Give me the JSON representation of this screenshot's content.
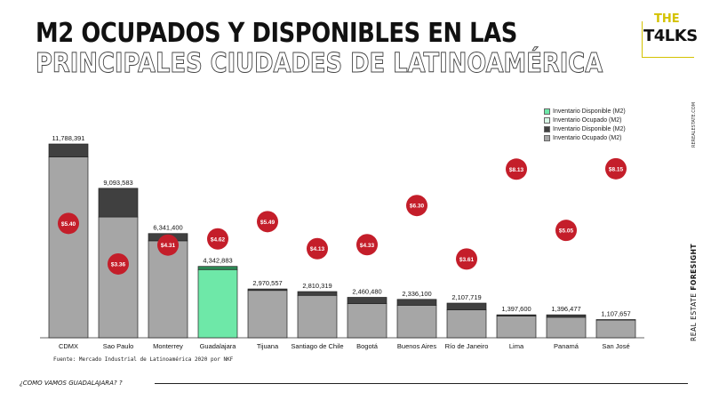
{
  "header": {
    "title_line1": "M2 OCUPADOS Y DISPONIBLES EN LAS",
    "title_line2": "PRINCIPALES CIUDADES DE LATINOAMÉRICA"
  },
  "logo": {
    "top": "THE",
    "bottom": "T4LKS"
  },
  "side_url": "REREALESTATE.COM",
  "side_brand": {
    "prefix": "REAL ESTATE ",
    "bold": "FORESIGHT"
  },
  "source": "Fuente: Mercado Industrial de Latinoamérica 2020 por NKF",
  "footer": "¿COMO VAMOS GUADALAJARA? ?",
  "colors": {
    "occupied": "#a6a6a6",
    "available": "#404040",
    "gdl_occupied": "#6ee8a8",
    "gdl_available": "#2c8a55",
    "price_circle": "#c41e2a"
  },
  "legend": [
    {
      "label": "Inventario Disponible (M2)",
      "color": "#6ee8a8"
    },
    {
      "label": "Inventario Ocupado (M2)",
      "color": "#d8f7e6"
    },
    {
      "label": "Inventario Disponible (M2)",
      "color": "#404040"
    },
    {
      "label": "Inventario Ocupado (M2)",
      "color": "#a6a6a6"
    }
  ],
  "chart_data": {
    "type": "bar",
    "stacked": true,
    "categories": [
      "CDMX",
      "Sao Paulo",
      "Monterrey",
      "Guadalajara",
      "Tijuana",
      "Santiago de Chile",
      "Bogotá",
      "Buenos Aires",
      "Río de Janeiro",
      "Lima",
      "Panamá",
      "San José"
    ],
    "totals": [
      11788391,
      9093583,
      6341400,
      4342883,
      2970557,
      2810319,
      2460480,
      2336100,
      2107719,
      1397600,
      1396477,
      1107657
    ],
    "total_labels": [
      "11,788,391",
      "9,093,583",
      "6,341,400",
      "4,342,883",
      "2,970,557",
      "2,810,319",
      "2,460,480",
      "2,336,100",
      "2,107,719",
      "1,397,600",
      "1,396,477",
      "1,107,657"
    ],
    "series": [
      {
        "name": "Inventario Ocupado (M2)",
        "values": [
          11000000,
          7350000,
          5900000,
          4150000,
          2880000,
          2580000,
          2080000,
          1980000,
          1700000,
          1320000,
          1250000,
          1080000
        ]
      },
      {
        "name": "Inventario Disponible (M2)",
        "values": [
          788391,
          1743583,
          441400,
          192883,
          90557,
          230319,
          380480,
          356100,
          407719,
          77600,
          146477,
          27657
        ]
      }
    ],
    "prices": [
      "$5.40",
      "$3.36",
      "$4.31",
      "$4.62",
      "$5.49",
      "$4.13",
      "$4.33",
      "$6.30",
      "$3.61",
      "$8.13",
      "$5.05",
      "$8.15"
    ],
    "price_values": [
      5.4,
      3.36,
      4.31,
      4.62,
      5.49,
      4.13,
      4.33,
      6.3,
      3.61,
      8.13,
      5.05,
      8.15
    ],
    "highlight_category": "Guadalajara",
    "ylim": [
      0,
      12500000
    ],
    "grid": false
  }
}
